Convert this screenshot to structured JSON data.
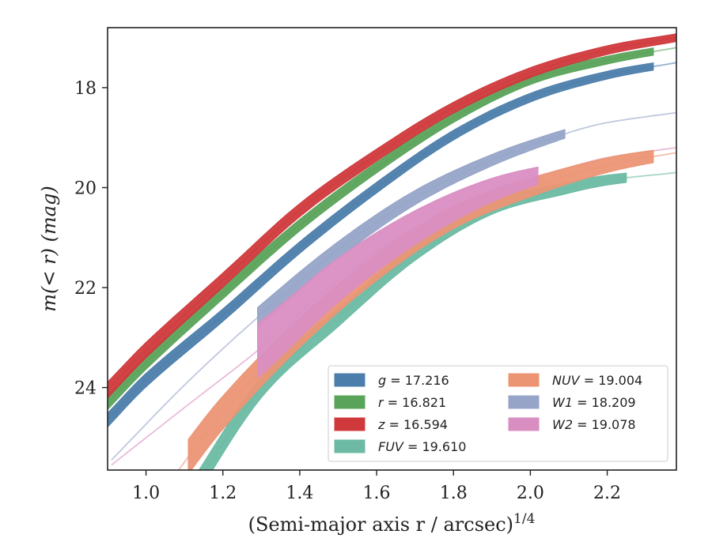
{
  "chart_data": {
    "type": "line",
    "xlabel": "(Semi-major axis r / arcsec)",
    "xlabel_superscript": "1/4",
    "ylabel": "m(< r) (mag)",
    "xlim": [
      0.9,
      2.38
    ],
    "ylim": [
      25.65,
      16.8
    ],
    "y_inverted": true,
    "grid": false,
    "legend_position": "lower-right",
    "x_ticks": [
      1.0,
      1.2,
      1.4,
      1.6,
      1.8,
      2.0,
      2.2
    ],
    "x_tick_labels": [
      "1.0",
      "1.2",
      "1.4",
      "1.6",
      "1.8",
      "2.0",
      "2.2"
    ],
    "y_ticks": [
      18,
      20,
      22,
      24
    ],
    "y_tick_labels": [
      "18",
      "20",
      "22",
      "24"
    ],
    "series": [
      {
        "name": "g = 17.216",
        "legend_var": "g",
        "legend_val": "17.216",
        "color": "#4c7eab",
        "model": [
          [
            0.9,
            24.65
          ],
          [
            1.0,
            23.85
          ],
          [
            1.2,
            22.55
          ],
          [
            1.4,
            21.2
          ],
          [
            1.6,
            20.0
          ],
          [
            1.8,
            18.95
          ],
          [
            2.0,
            18.2
          ],
          [
            2.2,
            17.75
          ],
          [
            2.38,
            17.5
          ]
        ],
        "band_x": [
          0.9,
          2.32
        ],
        "band_width": 0.18
      },
      {
        "name": "r = 16.821",
        "legend_var": "r",
        "legend_val": "16.821",
        "color": "#5aa35a",
        "model": [
          [
            0.9,
            24.3
          ],
          [
            1.0,
            23.5
          ],
          [
            1.2,
            22.1
          ],
          [
            1.4,
            20.75
          ],
          [
            1.6,
            19.6
          ],
          [
            1.8,
            18.6
          ],
          [
            2.0,
            17.85
          ],
          [
            2.2,
            17.45
          ],
          [
            2.38,
            17.2
          ]
        ],
        "band_x": [
          0.9,
          2.32
        ],
        "band_width": 0.18
      },
      {
        "name": "z = 16.594",
        "legend_var": "z",
        "legend_val": "16.594",
        "color": "#d0393c",
        "model": [
          [
            0.9,
            24.05
          ],
          [
            1.0,
            23.25
          ],
          [
            1.2,
            21.85
          ],
          [
            1.4,
            20.45
          ],
          [
            1.6,
            19.35
          ],
          [
            1.8,
            18.4
          ],
          [
            2.0,
            17.7
          ],
          [
            2.2,
            17.25
          ],
          [
            2.38,
            17.0
          ]
        ],
        "band_x": [
          0.9,
          2.38
        ],
        "band_width": 0.22
      },
      {
        "name": "FUV = 19.610",
        "legend_var": "FUV",
        "legend_val": "19.610",
        "color": "#6cbaa3",
        "model": [
          [
            1.11,
            26.2
          ],
          [
            1.3,
            24.0
          ],
          [
            1.5,
            22.6
          ],
          [
            1.7,
            21.3
          ],
          [
            1.9,
            20.4
          ],
          [
            2.1,
            20.0
          ],
          [
            2.2,
            19.85
          ],
          [
            2.38,
            19.7
          ]
        ],
        "band_x": [
          1.11,
          2.25
        ],
        "band_width": 0.35
      },
      {
        "name": "NUV = 19.004",
        "legend_var": "NUV",
        "legend_val": "19.004",
        "color": "#eb9574",
        "model": [
          [
            1.06,
            25.9
          ],
          [
            1.2,
            24.5
          ],
          [
            1.4,
            22.9
          ],
          [
            1.6,
            21.6
          ],
          [
            1.8,
            20.6
          ],
          [
            2.0,
            20.0
          ],
          [
            2.2,
            19.55
          ],
          [
            2.38,
            19.3
          ]
        ],
        "band_x": [
          1.11,
          2.32
        ],
        "band_width": 0.6
      },
      {
        "name": "W1 = 18.209",
        "legend_var": "W1",
        "legend_val": "18.209",
        "color": "#96a4c8",
        "model": [
          [
            0.91,
            25.45
          ],
          [
            1.1,
            23.95
          ],
          [
            1.29,
            22.6
          ],
          [
            1.5,
            21.25
          ],
          [
            1.7,
            20.2
          ],
          [
            1.9,
            19.45
          ],
          [
            2.1,
            18.9
          ],
          [
            2.2,
            18.7
          ],
          [
            2.38,
            18.5
          ]
        ],
        "band_x": [
          1.29,
          2.09
        ],
        "band_width": 0.3
      },
      {
        "name": "W2 = 19.078",
        "legend_var": "W2",
        "legend_val": "19.078",
        "color": "#d98ec2",
        "model": [
          [
            0.91,
            25.55
          ],
          [
            1.1,
            24.4
          ],
          [
            1.3,
            23.2
          ],
          [
            1.5,
            21.85
          ],
          [
            1.7,
            20.8
          ],
          [
            1.9,
            20.05
          ],
          [
            2.1,
            19.6
          ],
          [
            2.2,
            19.4
          ],
          [
            2.38,
            19.2
          ]
        ],
        "band_x": [
          1.29,
          2.02
        ],
        "band_width": 1.0
      }
    ]
  }
}
